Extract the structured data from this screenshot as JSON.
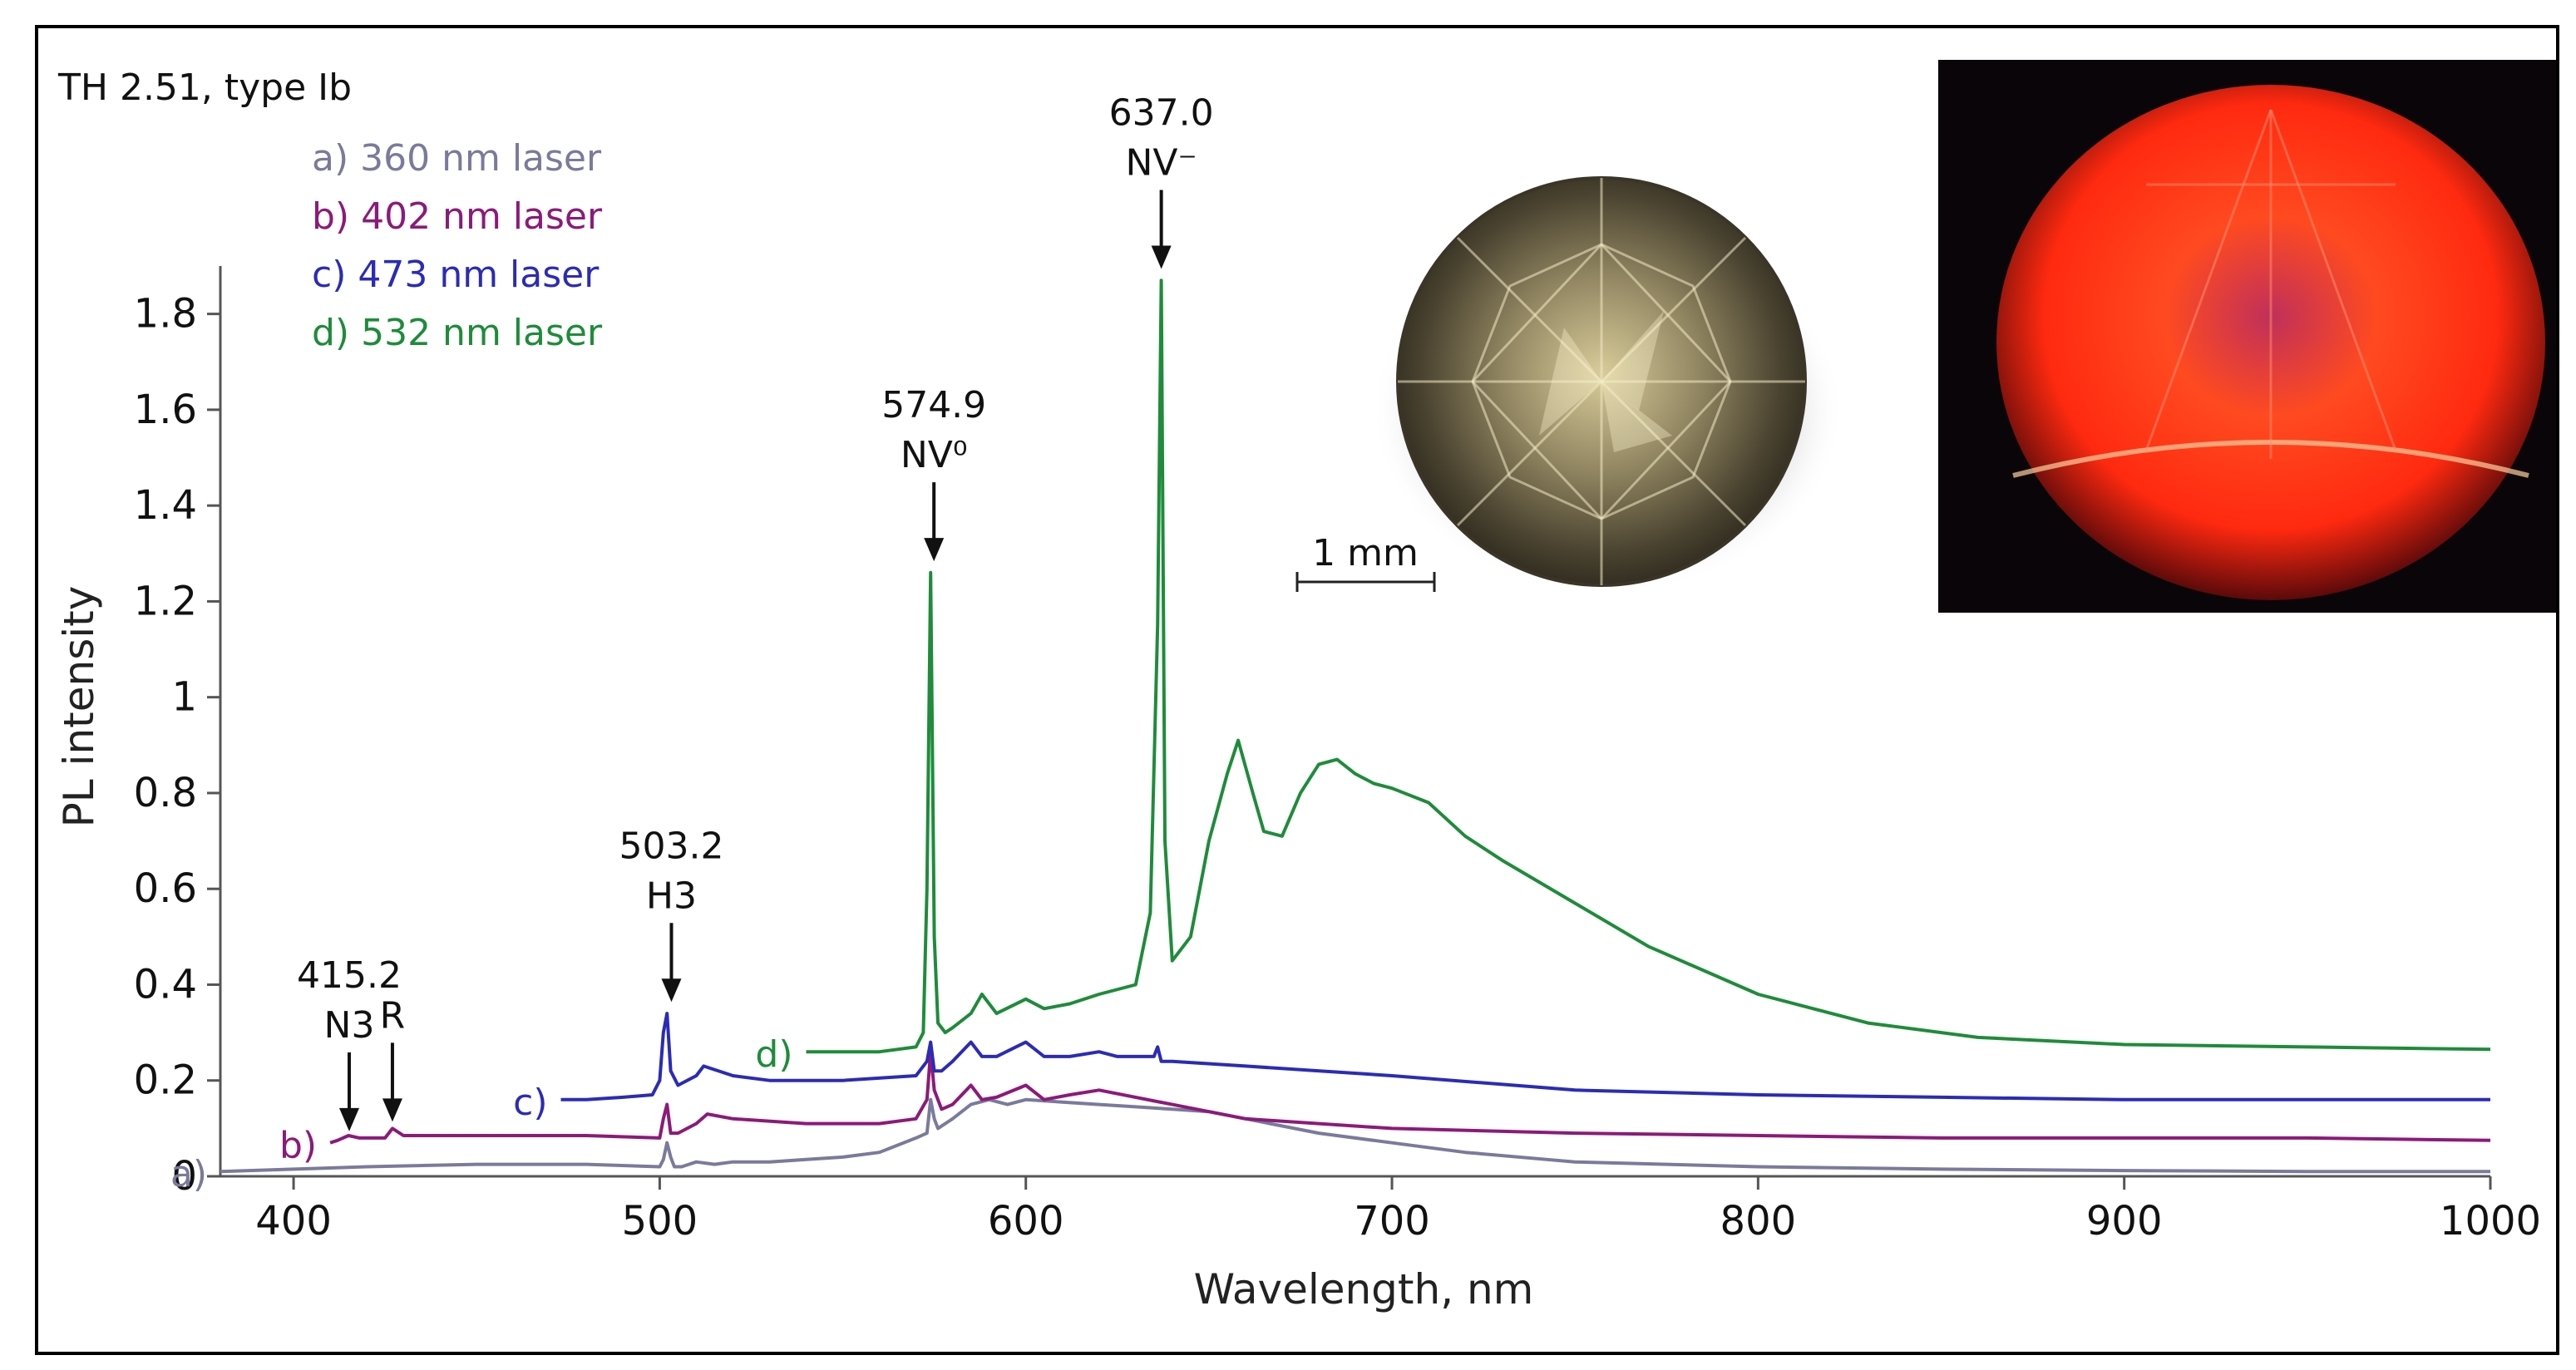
{
  "chart_data": {
    "type": "line",
    "xlabel": "Wavelength, nm",
    "ylabel": "PL intensity",
    "xlim": [
      380,
      1000
    ],
    "ylim": [
      0,
      1.9
    ],
    "x_ticks": [
      400,
      500,
      600,
      700,
      800,
      900,
      1000
    ],
    "x_tick_labels": [
      "400",
      "500",
      "600",
      "700",
      "800",
      "900",
      "1000"
    ],
    "y_ticks": [
      0,
      0.2,
      0.4,
      0.6,
      0.8,
      1,
      1.2,
      1.4,
      1.6,
      1.8
    ],
    "y_tick_labels": [
      "0",
      "0.2",
      "0.4",
      "0.6",
      "0.8",
      "1",
      "1.2",
      "1.4",
      "1.6",
      "1.8"
    ],
    "legend": {
      "title": "TH 2.51, type Ib",
      "position": "top-left",
      "entries": [
        "a) 360 nm laser",
        "b) 402 nm laser",
        "c) 473 nm laser",
        "d) 532 nm laser"
      ]
    },
    "series": [
      {
        "name": "a) 360 nm laser",
        "label": "a)",
        "color": "#7a7a9c",
        "x": [
          380,
          400,
          420,
          450,
          480,
          500,
          501,
          502,
          503,
          504,
          506,
          510,
          515,
          520,
          530,
          540,
          550,
          560,
          570,
          573,
          574,
          575,
          576,
          580,
          585,
          590,
          595,
          600,
          610,
          620,
          630,
          640,
          650,
          660,
          680,
          700,
          720,
          750,
          800,
          850,
          900,
          950,
          1000
        ],
        "y": [
          0.01,
          0.015,
          0.02,
          0.025,
          0.025,
          0.02,
          0.035,
          0.07,
          0.04,
          0.02,
          0.02,
          0.03,
          0.025,
          0.03,
          0.03,
          0.035,
          0.04,
          0.05,
          0.08,
          0.09,
          0.16,
          0.12,
          0.1,
          0.12,
          0.15,
          0.16,
          0.15,
          0.16,
          0.155,
          0.15,
          0.145,
          0.14,
          0.135,
          0.12,
          0.09,
          0.07,
          0.05,
          0.03,
          0.02,
          0.015,
          0.012,
          0.01,
          0.01
        ]
      },
      {
        "name": "b) 402 nm laser",
        "label": "b)",
        "color": "#8c1a7a",
        "x": [
          410,
          412,
          415,
          418,
          425,
          427,
          430,
          450,
          480,
          500,
          501,
          502,
          503,
          505,
          510,
          513,
          520,
          540,
          560,
          570,
          573,
          574,
          575,
          577,
          580,
          585,
          588,
          592,
          600,
          605,
          612,
          620,
          640,
          660,
          700,
          750,
          800,
          850,
          900,
          950,
          1000
        ],
        "y": [
          0.07,
          0.075,
          0.085,
          0.08,
          0.08,
          0.1,
          0.085,
          0.085,
          0.085,
          0.08,
          0.12,
          0.15,
          0.09,
          0.09,
          0.11,
          0.13,
          0.12,
          0.11,
          0.11,
          0.12,
          0.16,
          0.26,
          0.18,
          0.14,
          0.15,
          0.19,
          0.16,
          0.165,
          0.19,
          0.16,
          0.17,
          0.18,
          0.15,
          0.12,
          0.1,
          0.09,
          0.085,
          0.08,
          0.08,
          0.08,
          0.075
        ]
      },
      {
        "name": "c) 473 nm laser",
        "label": "c)",
        "color": "#2b2bb8",
        "x": [
          473,
          480,
          490,
          498,
          500,
          501,
          502,
          503,
          505,
          510,
          512,
          520,
          530,
          550,
          570,
          573,
          574,
          575,
          577,
          580,
          585,
          588,
          592,
          600,
          605,
          612,
          620,
          625,
          635,
          636,
          637,
          640,
          660,
          700,
          750,
          800,
          850,
          900,
          950,
          1000
        ],
        "y": [
          0.16,
          0.16,
          0.165,
          0.17,
          0.2,
          0.3,
          0.34,
          0.22,
          0.19,
          0.21,
          0.23,
          0.21,
          0.2,
          0.2,
          0.21,
          0.24,
          0.28,
          0.22,
          0.22,
          0.24,
          0.28,
          0.25,
          0.25,
          0.28,
          0.25,
          0.25,
          0.26,
          0.25,
          0.25,
          0.27,
          0.24,
          0.24,
          0.23,
          0.21,
          0.18,
          0.17,
          0.165,
          0.16,
          0.16,
          0.16
        ]
      },
      {
        "name": "d) 532 nm laser",
        "label": "d)",
        "color": "#1e8c3a",
        "x": [
          540,
          550,
          560,
          570,
          572,
          573,
          574,
          575,
          576,
          578,
          580,
          585,
          588,
          592,
          600,
          605,
          612,
          620,
          630,
          634,
          636,
          637,
          638,
          640,
          645,
          650,
          655,
          658,
          662,
          665,
          670,
          675,
          680,
          685,
          690,
          695,
          700,
          710,
          720,
          730,
          750,
          770,
          800,
          830,
          860,
          900,
          950,
          1000
        ],
        "y": [
          0.26,
          0.26,
          0.26,
          0.27,
          0.3,
          0.6,
          1.26,
          0.5,
          0.32,
          0.3,
          0.31,
          0.34,
          0.38,
          0.34,
          0.37,
          0.35,
          0.36,
          0.38,
          0.4,
          0.55,
          1.15,
          1.87,
          0.7,
          0.45,
          0.5,
          0.7,
          0.84,
          0.91,
          0.8,
          0.72,
          0.71,
          0.8,
          0.86,
          0.87,
          0.84,
          0.82,
          0.81,
          0.78,
          0.71,
          0.66,
          0.57,
          0.48,
          0.38,
          0.32,
          0.29,
          0.275,
          0.27,
          0.265
        ]
      }
    ],
    "annotations": [
      {
        "wavelength": "415.2",
        "name": "N3",
        "x": 415.2,
        "arrow_to_y": 0.08
      },
      {
        "wavelength": "",
        "name": "R",
        "x": 427,
        "arrow_to_y": 0.1
      },
      {
        "wavelength": "503.2",
        "name": "H3",
        "x": 503.2,
        "arrow_to_y": 0.35
      },
      {
        "wavelength": "574.9",
        "name": "NV⁰",
        "x": 574.9,
        "arrow_to_y": 1.27
      },
      {
        "wavelength": "637.0",
        "name": "NV⁻",
        "x": 637.0,
        "arrow_to_y": 1.88
      }
    ]
  },
  "scale_bar": {
    "label": "1 mm"
  },
  "colors": {
    "legend_title": "#111111",
    "a": "#7a7a9c",
    "b": "#8c1a7a",
    "c": "#2b2bb8",
    "d": "#1e8c3a",
    "fluorescence": "#ff3a1a"
  }
}
